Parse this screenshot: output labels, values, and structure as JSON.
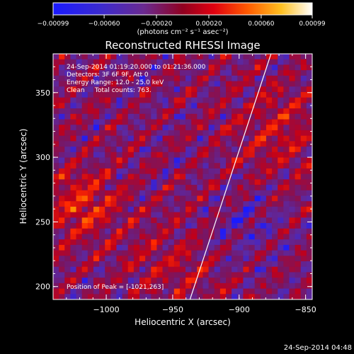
{
  "chart_data": {
    "type": "heatmap",
    "title": "Reconstructed RHESSI Image",
    "xlabel": "Heliocentric X (arcsec)",
    "ylabel": "Heliocentric Y (arcsec)",
    "xlim": [
      -1040,
      -845
    ],
    "ylim": [
      190,
      380
    ],
    "x_ticks": [
      -1000,
      -950,
      -900,
      -850
    ],
    "x_tick_labels": [
      "−1000",
      "−950",
      "−900",
      "−850"
    ],
    "y_ticks": [
      200,
      250,
      300,
      350
    ],
    "y_tick_labels": [
      "200",
      "250",
      "300",
      "350"
    ],
    "colorbar": {
      "range": [
        -0.00099,
        0.00099
      ],
      "ticks": [
        -0.00099,
        -0.0006,
        -0.0002,
        0.0002,
        0.0006,
        0.00099
      ],
      "tick_labels": [
        "−0.00099",
        "−0.00060",
        "−0.00020",
        "0.00020",
        "0.00060",
        "0.00099"
      ],
      "colors": [
        "#1a1aff",
        "#5a2aa6",
        "#7a1560",
        "#c0001a",
        "#ff2a00",
        "#ff9a00",
        "#ffff40",
        "#ffffff"
      ]
    },
    "units_label": "(photons cm⁻² s⁻¹ asec⁻²)",
    "annotations": [
      "24-Sep-2014 01:19:20.000 to 01:21:36.000",
      "Detectors: 3F 6F 9F, Att 0",
      "Energy Range: 12.0 - 25.0 keV",
      "Clean     Total counts: 763."
    ],
    "peak_label": "Position of Peak = [-1021,263]",
    "limb_line": [
      [
        -937,
        190
      ],
      [
        -876,
        380
      ]
    ],
    "grid": false
  },
  "footer_timestamp": "24-Sep-2014 04:48"
}
